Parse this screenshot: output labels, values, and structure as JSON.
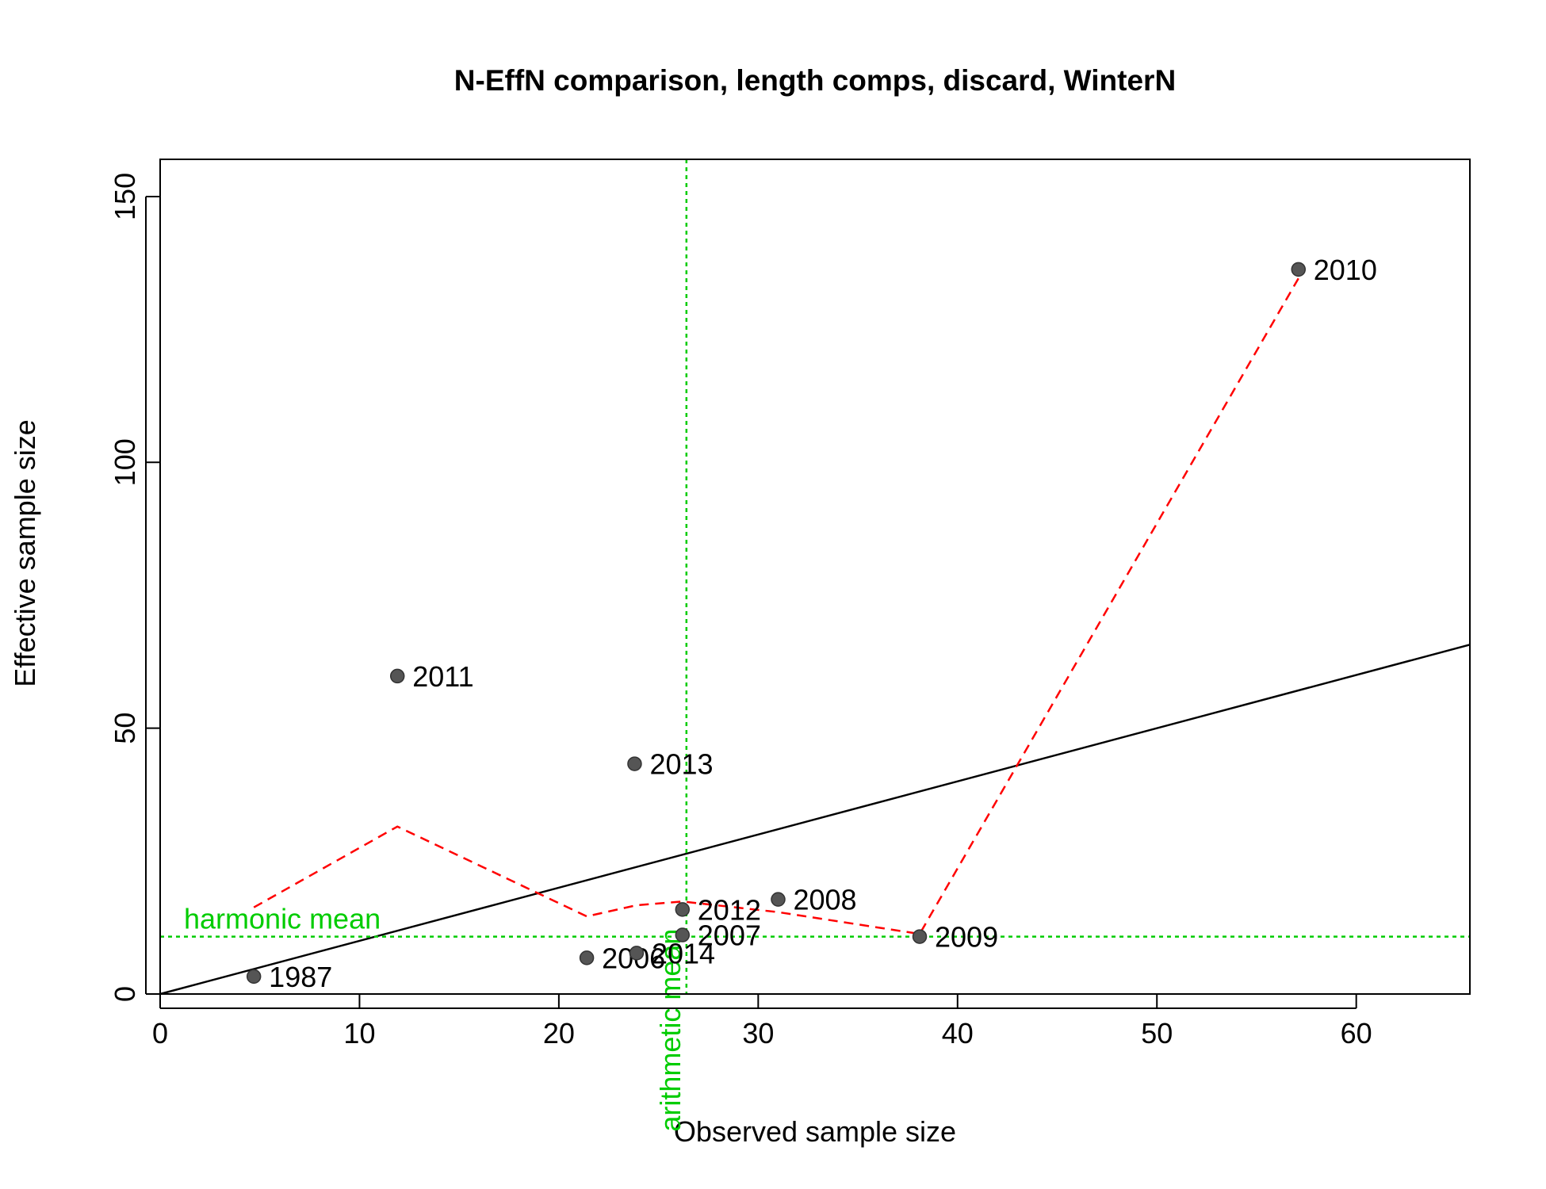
{
  "chart_data": {
    "type": "scatter",
    "title": "N-EffN comparison, length comps, discard, WinterN",
    "xlabel": "Observed sample size",
    "ylabel": "Effective sample size",
    "xlim": [
      0,
      65.7
    ],
    "ylim": [
      0,
      157
    ],
    "xticks": [
      0,
      10,
      20,
      30,
      40,
      50,
      60
    ],
    "yticks": [
      0,
      50,
      100,
      150
    ],
    "grid": false,
    "points": [
      {
        "label": "1987",
        "x": 4.7,
        "y": 3.3
      },
      {
        "label": "2006",
        "x": 21.4,
        "y": 6.8
      },
      {
        "label": "2014",
        "x": 23.9,
        "y": 7.7
      },
      {
        "label": "2007",
        "x": 26.2,
        "y": 11.1
      },
      {
        "label": "2012",
        "x": 26.2,
        "y": 15.9
      },
      {
        "label": "2008",
        "x": 31.0,
        "y": 17.8
      },
      {
        "label": "2009",
        "x": 38.1,
        "y": 10.8
      },
      {
        "label": "2010",
        "x": 57.1,
        "y": 136.3
      },
      {
        "label": "2011",
        "x": 11.9,
        "y": 59.8
      },
      {
        "label": "2013",
        "x": 23.8,
        "y": 43.3
      }
    ],
    "smoother": [
      {
        "x": 4.7,
        "y": 16.3
      },
      {
        "x": 11.9,
        "y": 31.5
      },
      {
        "x": 21.4,
        "y": 14.6
      },
      {
        "x": 23.9,
        "y": 16.7
      },
      {
        "x": 26.2,
        "y": 17.4
      },
      {
        "x": 31.0,
        "y": 15.4
      },
      {
        "x": 38.1,
        "y": 11.3
      },
      {
        "x": 57.1,
        "y": 134.6
      }
    ],
    "one_to_one_line": true,
    "reference_lines": {
      "harmonic_mean": {
        "label": "harmonic mean",
        "value": 10.8,
        "color": "#00cc00"
      },
      "arithmetic_mean": {
        "label": "arithmetic mean",
        "value": 26.4,
        "color": "#00cc00"
      }
    },
    "colors": {
      "points": "#555555",
      "smoother": "#ff0000",
      "reference": "#00cc00",
      "one_to_one": "#000000"
    }
  }
}
